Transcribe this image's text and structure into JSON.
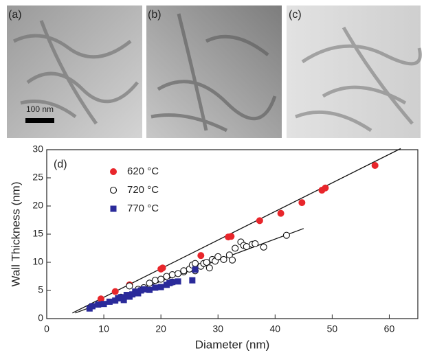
{
  "panels": [
    {
      "label": "(a)"
    },
    {
      "label": "(b)"
    },
    {
      "label": "(c)"
    }
  ],
  "scale_bar": "100 nm",
  "chart_data": {
    "type": "scatter",
    "panel_label": "(d)",
    "x_label": "Diameter (nm)",
    "y_label": "Wall Thickness (nm)",
    "xlim": [
      0,
      65
    ],
    "ylim": [
      0,
      30
    ],
    "xticks": [
      0,
      10,
      20,
      30,
      40,
      50,
      60
    ],
    "yticks": [
      0,
      5,
      10,
      15,
      20,
      25,
      30
    ],
    "series": [
      {
        "name": "620 °C",
        "color": "#e8262b",
        "marker": "circle",
        "x": [
          9.5,
          12,
          14.5,
          20,
          20.3,
          27,
          31.8,
          32.3,
          37.3,
          41,
          44.7,
          48.2,
          48.8,
          57.5
        ],
        "values": [
          3.5,
          4.8,
          6,
          8.8,
          9,
          11.2,
          14.5,
          14.6,
          17.4,
          18.7,
          20.6,
          22.8,
          23.2,
          27.2
        ]
      },
      {
        "name": "720 °C",
        "color": "#111111",
        "marker": "open-circle",
        "x": [
          13,
          14.5,
          16,
          17,
          18,
          19,
          20,
          21,
          22,
          22,
          23,
          24,
          24,
          25,
          25.5,
          26,
          26,
          27,
          27.5,
          28,
          28.5,
          29,
          29.5,
          30,
          31,
          32,
          32.5,
          33,
          34,
          34.5,
          35,
          36,
          36.5,
          38,
          42
        ],
        "values": [
          3.8,
          5.8,
          5.2,
          5.5,
          6.3,
          6.8,
          7,
          7.5,
          7.8,
          6.5,
          8,
          8.3,
          8.5,
          8.8,
          9.5,
          8.5,
          9.8,
          9.3,
          9.8,
          10,
          9,
          10.5,
          10.2,
          11,
          10.5,
          11.3,
          10.4,
          12.5,
          13.6,
          13,
          12.8,
          13.2,
          13.3,
          12.7,
          14.8
        ]
      },
      {
        "name": "770 °C",
        "color": "#2a2a9a",
        "marker": "square",
        "x": [
          7.5,
          8,
          9,
          10,
          11,
          12,
          12.5,
          13,
          13.5,
          14,
          14.5,
          15,
          15.5,
          16,
          16.5,
          17,
          18,
          19,
          20,
          21,
          21.5,
          22,
          23,
          25.5,
          26
        ],
        "values": [
          1.8,
          2.2,
          2.5,
          2.6,
          3,
          3.2,
          3.6,
          3.8,
          3.3,
          4.2,
          3.9,
          4.3,
          4.8,
          4.5,
          5,
          5.2,
          5.1,
          5.5,
          5.6,
          6,
          6.3,
          6.5,
          6.6,
          6.8,
          8.7
        ]
      }
    ],
    "fits": [
      {
        "color": "#111111",
        "x": [
          4.5,
          62
        ],
        "values": [
          1,
          30.2
        ]
      },
      {
        "color": "#111111",
        "x": [
          5,
          45
        ],
        "values": [
          1,
          16
        ]
      }
    ]
  }
}
